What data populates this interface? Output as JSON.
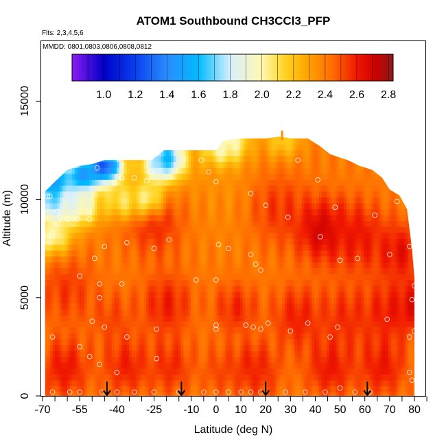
{
  "chart_data": {
    "type": "heatmap",
    "title": "ATOM1 Southbound CH3CCl3_PFP",
    "subtitle_flights": "Flts: 2,3,4,5,6",
    "subtitle_dates": "MMDD: 0801,0803,0806,0808,0812",
    "xlabel": "Latitude (deg N)",
    "ylabel": "Altitude (m)",
    "xlim": [
      -70,
      85
    ],
    "ylim": [
      0,
      18000
    ],
    "x_ticks": [
      -70,
      -55,
      -40,
      -25,
      -10,
      0,
      10,
      20,
      30,
      40,
      50,
      60,
      70,
      80
    ],
    "x_tick_labels": [
      "-70",
      "-55",
      "-40",
      "-25",
      "-10",
      "0",
      "10",
      "20",
      "30",
      "40",
      "50",
      "60",
      "70",
      "80"
    ],
    "y_ticks": [
      0,
      5000,
      10000,
      15000
    ],
    "y_tick_labels": [
      "0",
      "5000",
      "10000",
      "15000"
    ],
    "colorbar": {
      "range": [
        0.8,
        2.83
      ],
      "ticks": [
        1.0,
        1.2,
        1.4,
        1.6,
        1.8,
        2.0,
        2.2,
        2.4,
        2.6,
        2.8
      ],
      "tick_labels": [
        "1.0",
        "1.2",
        "1.4",
        "1.6",
        "1.8",
        "2.0",
        "2.2",
        "2.4",
        "2.6",
        "2.8"
      ],
      "stops": [
        {
          "v": 0.8,
          "color": "#8b1cf0"
        },
        {
          "v": 1.0,
          "color": "#0000c8"
        },
        {
          "v": 1.2,
          "color": "#0a40ee"
        },
        {
          "v": 1.4,
          "color": "#2a8cff"
        },
        {
          "v": 1.6,
          "color": "#00bbff"
        },
        {
          "v": 1.8,
          "color": "#d8f0ff"
        },
        {
          "v": 2.0,
          "color": "#fff8b0"
        },
        {
          "v": 2.15,
          "color": "#ffd21c"
        },
        {
          "v": 2.3,
          "color": "#ffa000"
        },
        {
          "v": 2.45,
          "color": "#ff6a00"
        },
        {
          "v": 2.6,
          "color": "#f01800"
        },
        {
          "v": 2.72,
          "color": "#cc0000"
        },
        {
          "v": 2.83,
          "color": "#8b1a1a"
        }
      ]
    },
    "domain_top": [
      [
        -69,
        10400
      ],
      [
        -65,
        10900
      ],
      [
        -60,
        11500
      ],
      [
        -55,
        11700
      ],
      [
        -50,
        11800
      ],
      [
        -45,
        12000
      ],
      [
        -40,
        12000
      ],
      [
        -35,
        12000
      ],
      [
        -30,
        12000
      ],
      [
        -26,
        12000
      ],
      [
        -21,
        12500
      ],
      [
        -15,
        12500
      ],
      [
        -10,
        12500
      ],
      [
        -5,
        12500
      ],
      [
        0,
        12500
      ],
      [
        3,
        13000
      ],
      [
        10,
        13100
      ],
      [
        20,
        13100
      ],
      [
        26,
        13200
      ],
      [
        30,
        13100
      ],
      [
        37,
        13100
      ],
      [
        42,
        12700
      ],
      [
        46,
        12300
      ],
      [
        53,
        12000
      ],
      [
        58,
        11700
      ],
      [
        63,
        11500
      ],
      [
        67,
        11100
      ],
      [
        70,
        10500
      ],
      [
        74,
        10200
      ],
      [
        77,
        9500
      ],
      [
        79,
        7500
      ],
      [
        80,
        6000
      ],
      [
        80,
        0
      ]
    ],
    "field_lines": [
      [
        [
          -69,
          10000
        ],
        [
          -25,
          10300
        ],
        [
          -18,
          8800
        ],
        [
          -25,
          7000
        ],
        [
          -50,
          6900
        ],
        [
          -69,
          6400
        ]
      ],
      [
        [
          -50,
          6500
        ],
        [
          -35,
          5000
        ],
        [
          -28,
          3200
        ],
        [
          -40,
          1300
        ],
        [
          -66,
          500
        ]
      ],
      [
        [
          -12,
          9700
        ],
        [
          -5,
          7800
        ],
        [
          2,
          5500
        ],
        [
          0,
          3200
        ],
        [
          6,
          900
        ],
        [
          8,
          0
        ]
      ],
      [
        [
          25,
          11800
        ],
        [
          18,
          10500
        ],
        [
          14,
          8500
        ],
        [
          15,
          6200
        ],
        [
          20,
          4300
        ],
        [
          19,
          1800
        ],
        [
          16,
          0
        ]
      ],
      [
        [
          36,
          9700
        ],
        [
          42,
          8000
        ],
        [
          49,
          8800
        ],
        [
          55,
          9600
        ],
        [
          55,
          7300
        ],
        [
          60,
          5800
        ],
        [
          58,
          3200
        ],
        [
          48,
          2200
        ],
        [
          40,
          0
        ]
      ],
      [
        [
          64,
          11300
        ],
        [
          70,
          10300
        ],
        [
          76,
          9400
        ],
        [
          70,
          7100
        ],
        [
          77,
          5300
        ],
        [
          73,
          2800
        ],
        [
          77,
          900
        ],
        [
          80,
          0
        ]
      ],
      [
        [
          -69,
          9200
        ],
        [
          -56,
          8600
        ],
        [
          -44,
          9600
        ],
        [
          -30,
          10900
        ],
        [
          -23,
          12100
        ],
        [
          -18,
          11500
        ],
        [
          -21,
          10000
        ]
      ]
    ],
    "hotspots": [
      [
        -46,
        10.8,
        0.7,
        2.44
      ],
      [
        -25,
        9.1,
        1.3,
        2.61
      ],
      [
        -8,
        11.4,
        0.9,
        2.36
      ],
      [
        7,
        10.8,
        1.8,
        2.34
      ],
      [
        25,
        9.5,
        1.4,
        2.55
      ],
      [
        43,
        8.4,
        1.1,
        2.72
      ],
      [
        57,
        8.1,
        1.3,
        2.62
      ],
      [
        74,
        7.3,
        1.1,
        2.64
      ],
      [
        -60,
        5.4,
        1.3,
        2.55
      ],
      [
        -42,
        4.0,
        1.0,
        2.52
      ],
      [
        -20,
        4.6,
        1.2,
        2.6
      ],
      [
        8,
        4.4,
        1.0,
        2.58
      ],
      [
        33,
        4.0,
        1.2,
        2.6
      ],
      [
        52,
        4.0,
        1.2,
        2.57
      ],
      [
        69,
        4.2,
        1.2,
        2.6
      ],
      [
        -61,
        1.4,
        1.1,
        2.62
      ],
      [
        -36,
        1.5,
        1.1,
        2.6
      ],
      [
        -18,
        1.5,
        1.0,
        2.58
      ],
      [
        2,
        1.3,
        1.0,
        2.52
      ],
      [
        18,
        1.2,
        1.0,
        2.55
      ],
      [
        46,
        1.4,
        1.1,
        2.62
      ],
      [
        67,
        1.5,
        1.1,
        2.62
      ],
      [
        80,
        4.6,
        0.9,
        2.66
      ],
      [
        14.5,
        1.5,
        0.8,
        2.58
      ]
    ],
    "low_region": [
      [
        -28,
        10.1,
        2.05
      ],
      [
        -38,
        9.9,
        2.1
      ],
      [
        -54,
        9.6,
        1.96
      ],
      [
        -61,
        9.5,
        1.95
      ],
      [
        -66,
        8.1,
        2.0
      ],
      [
        -68,
        9.8,
        1.75
      ],
      [
        -66,
        11.0,
        1.4
      ],
      [
        -54,
        11.2,
        1.5
      ],
      [
        -45,
        11.7,
        1.25
      ],
      [
        -23,
        11.6,
        1.95
      ],
      [
        -20,
        12.1,
        1.6
      ],
      [
        5,
        13.0,
        1.95
      ],
      [
        2,
        12.7,
        2.0
      ],
      [
        27,
        13.0,
        2.17
      ]
    ],
    "samples": [
      [
        -68,
        10150
      ],
      [
        -67,
        10150
      ],
      [
        -64,
        9400
      ],
      [
        -63,
        9100
      ],
      [
        -60,
        9000
      ],
      [
        -56,
        9000
      ],
      [
        -51,
        9000
      ],
      [
        -66,
        8300
      ],
      [
        -48,
        11600
      ],
      [
        -41,
        10800
      ],
      [
        -38,
        11100
      ],
      [
        -33,
        11100
      ],
      [
        -28,
        10950
      ],
      [
        -26,
        11400
      ],
      [
        -49,
        7000
      ],
      [
        -45,
        7600
      ],
      [
        -36,
        7800
      ],
      [
        -25,
        7500
      ],
      [
        -19,
        7950
      ],
      [
        -55,
        6100
      ],
      [
        -47,
        5700
      ],
      [
        -38,
        5700
      ],
      [
        -47,
        5000
      ],
      [
        -50,
        3800
      ],
      [
        -45,
        3500
      ],
      [
        -36,
        3000
      ],
      [
        -24,
        3400
      ],
      [
        -55,
        2500
      ],
      [
        -51,
        2000
      ],
      [
        -47,
        1600
      ],
      [
        -40,
        1200
      ],
      [
        -24,
        1900
      ],
      [
        -66,
        3000
      ],
      [
        -66,
        200
      ],
      [
        -59,
        200
      ],
      [
        -55,
        200
      ],
      [
        -46,
        200
      ],
      [
        -40,
        200
      ],
      [
        -33,
        200
      ],
      [
        -25,
        200
      ],
      [
        -15,
        200
      ],
      [
        -5,
        200
      ],
      [
        0,
        200
      ],
      [
        5,
        200
      ],
      [
        10,
        200
      ],
      [
        14,
        200
      ],
      [
        18,
        200
      ],
      [
        28,
        200
      ],
      [
        36,
        200
      ],
      [
        44,
        200
      ],
      [
        56,
        200
      ],
      [
        62,
        200
      ],
      [
        -8,
        5900
      ],
      [
        0,
        5900
      ],
      [
        1,
        7700
      ],
      [
        5,
        7500
      ],
      [
        14,
        7200
      ],
      [
        16,
        6700
      ],
      [
        18,
        6400
      ],
      [
        0,
        3600
      ],
      [
        0,
        3400
      ],
      [
        12,
        3600
      ],
      [
        15,
        3500
      ],
      [
        18,
        3400
      ],
      [
        21,
        3700
      ],
      [
        30,
        3300
      ],
      [
        37,
        3700
      ],
      [
        46,
        3000
      ],
      [
        49,
        3500
      ],
      [
        69,
        3900
      ],
      [
        78,
        3000
      ],
      [
        80,
        3300
      ],
      [
        80,
        5600
      ],
      [
        79,
        4900
      ],
      [
        78,
        1200
      ],
      [
        79,
        800
      ],
      [
        50,
        400
      ],
      [
        0,
        10900
      ],
      [
        -3,
        11400
      ],
      [
        -6,
        12000
      ],
      [
        14,
        10300
      ],
      [
        20,
        9700
      ],
      [
        29,
        9100
      ],
      [
        33,
        12000
      ],
      [
        41,
        11000
      ],
      [
        42,
        8100
      ],
      [
        48,
        9600
      ],
      [
        50,
        6900
      ],
      [
        57,
        7000
      ],
      [
        64,
        9200
      ],
      [
        70,
        7200
      ],
      [
        73,
        9900
      ],
      [
        78,
        9800
      ],
      [
        78,
        7600
      ],
      [
        80,
        10000
      ],
      [
        67,
        11400
      ]
    ],
    "arrows_at_latitude": [
      -44,
      -14,
      20,
      61
    ]
  }
}
